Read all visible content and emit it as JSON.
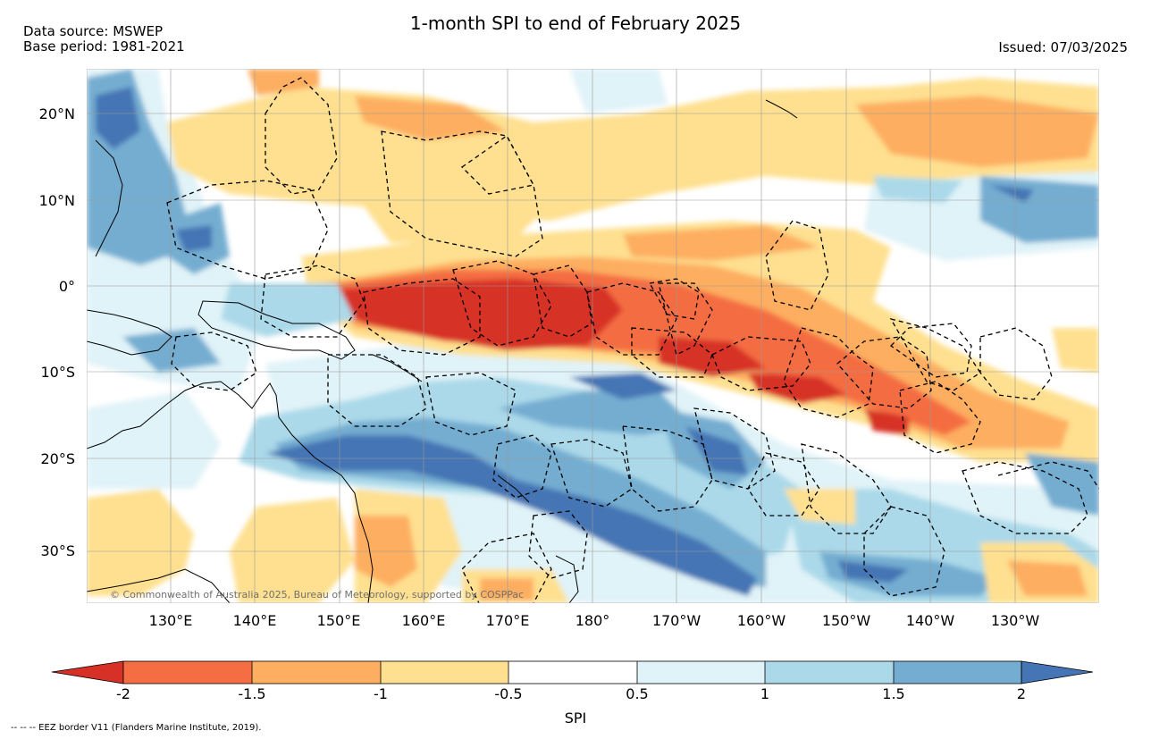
{
  "header": {
    "data_source": "Data source: MSWEP",
    "base_period": "Base period: 1981-2021",
    "title": "1-month SPI to end of February 2025",
    "issued": "Issued: 07/03/2025"
  },
  "map": {
    "lat_labels": [
      "20°N",
      "10°N",
      "0°",
      "10°S",
      "20°S",
      "30°S"
    ],
    "lat_values": [
      20,
      10,
      0,
      -10,
      -20,
      -30
    ],
    "lon_labels": [
      "130°E",
      "140°E",
      "150°E",
      "160°E",
      "170°E",
      "180°",
      "170°W",
      "160°W",
      "150°W",
      "140°W",
      "130°W"
    ],
    "lon_values": [
      130,
      140,
      150,
      160,
      170,
      180,
      190,
      200,
      210,
      220,
      230
    ],
    "lat_range": [
      -36.5,
      25.5
    ],
    "lon_range": [
      120,
      239
    ],
    "copyright": "© Commonwealth of Australia 2025, Bureau of Meteorology, supported by COSPPac"
  },
  "colorbar": {
    "ticks": [
      "-2",
      "-1.5",
      "-1",
      "-0.5",
      "0.5",
      "1",
      "1.5",
      "2"
    ],
    "colors": {
      "below_-2": "#d73027",
      "-2_to_-1.5": "#f46d43",
      "-1.5_to_-1": "#fdae61",
      "-1_to_-0.5": "#fee090",
      "-0.5_to_0.5": "#ffffff",
      "0.5_to_1": "#e0f3f8",
      "1_to_1.5": "#abd9e9",
      "1.5_to_2": "#74add1",
      "above_2": "#4575b4"
    },
    "label": "SPI"
  },
  "footnote": "--  --  -- EEZ border V11 (Flanders Marine Institute, 2019)."
}
